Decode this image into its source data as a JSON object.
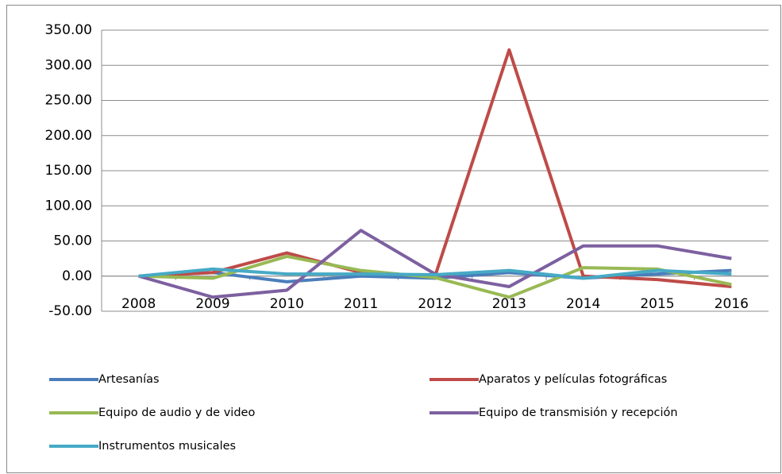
{
  "chart_data": {
    "type": "line",
    "categories": [
      "2008",
      "2009",
      "2010",
      "2011",
      "2012",
      "2013",
      "2014",
      "2015",
      "2016"
    ],
    "series": [
      {
        "name": "Artesanías",
        "color": "#4a7ebb",
        "values": [
          0,
          5,
          -8,
          0,
          -3,
          5,
          -3,
          3,
          8
        ]
      },
      {
        "name": "Aparatos y películas fotográficas",
        "color": "#be4b48",
        "values": [
          0,
          5,
          33,
          5,
          0,
          322,
          0,
          -5,
          -15
        ]
      },
      {
        "name": "Equipo de audio y de video",
        "color": "#98b954",
        "values": [
          0,
          -3,
          28,
          8,
          -2,
          -30,
          12,
          10,
          -12
        ]
      },
      {
        "name": "Equipo de transmisión y recepción",
        "color": "#7d60a0",
        "values": [
          0,
          -30,
          -20,
          65,
          3,
          -15,
          43,
          43,
          25
        ]
      },
      {
        "name": "Instrumentos musicales",
        "color": "#46aac5",
        "values": [
          0,
          10,
          3,
          3,
          2,
          8,
          -3,
          8,
          3
        ]
      }
    ],
    "ylim": [
      -50,
      350
    ],
    "yticks": [
      {
        "value": -50,
        "label": "-50.00"
      },
      {
        "value": 0,
        "label": "0.00"
      },
      {
        "value": 50,
        "label": "50.00"
      },
      {
        "value": 100,
        "label": "100.00"
      },
      {
        "value": 150,
        "label": "150.00"
      },
      {
        "value": 200,
        "label": "200.00"
      },
      {
        "value": 250,
        "label": "250.00"
      },
      {
        "value": 300,
        "label": "300.00"
      },
      {
        "value": 350,
        "label": "350.00"
      }
    ],
    "grid": true
  }
}
